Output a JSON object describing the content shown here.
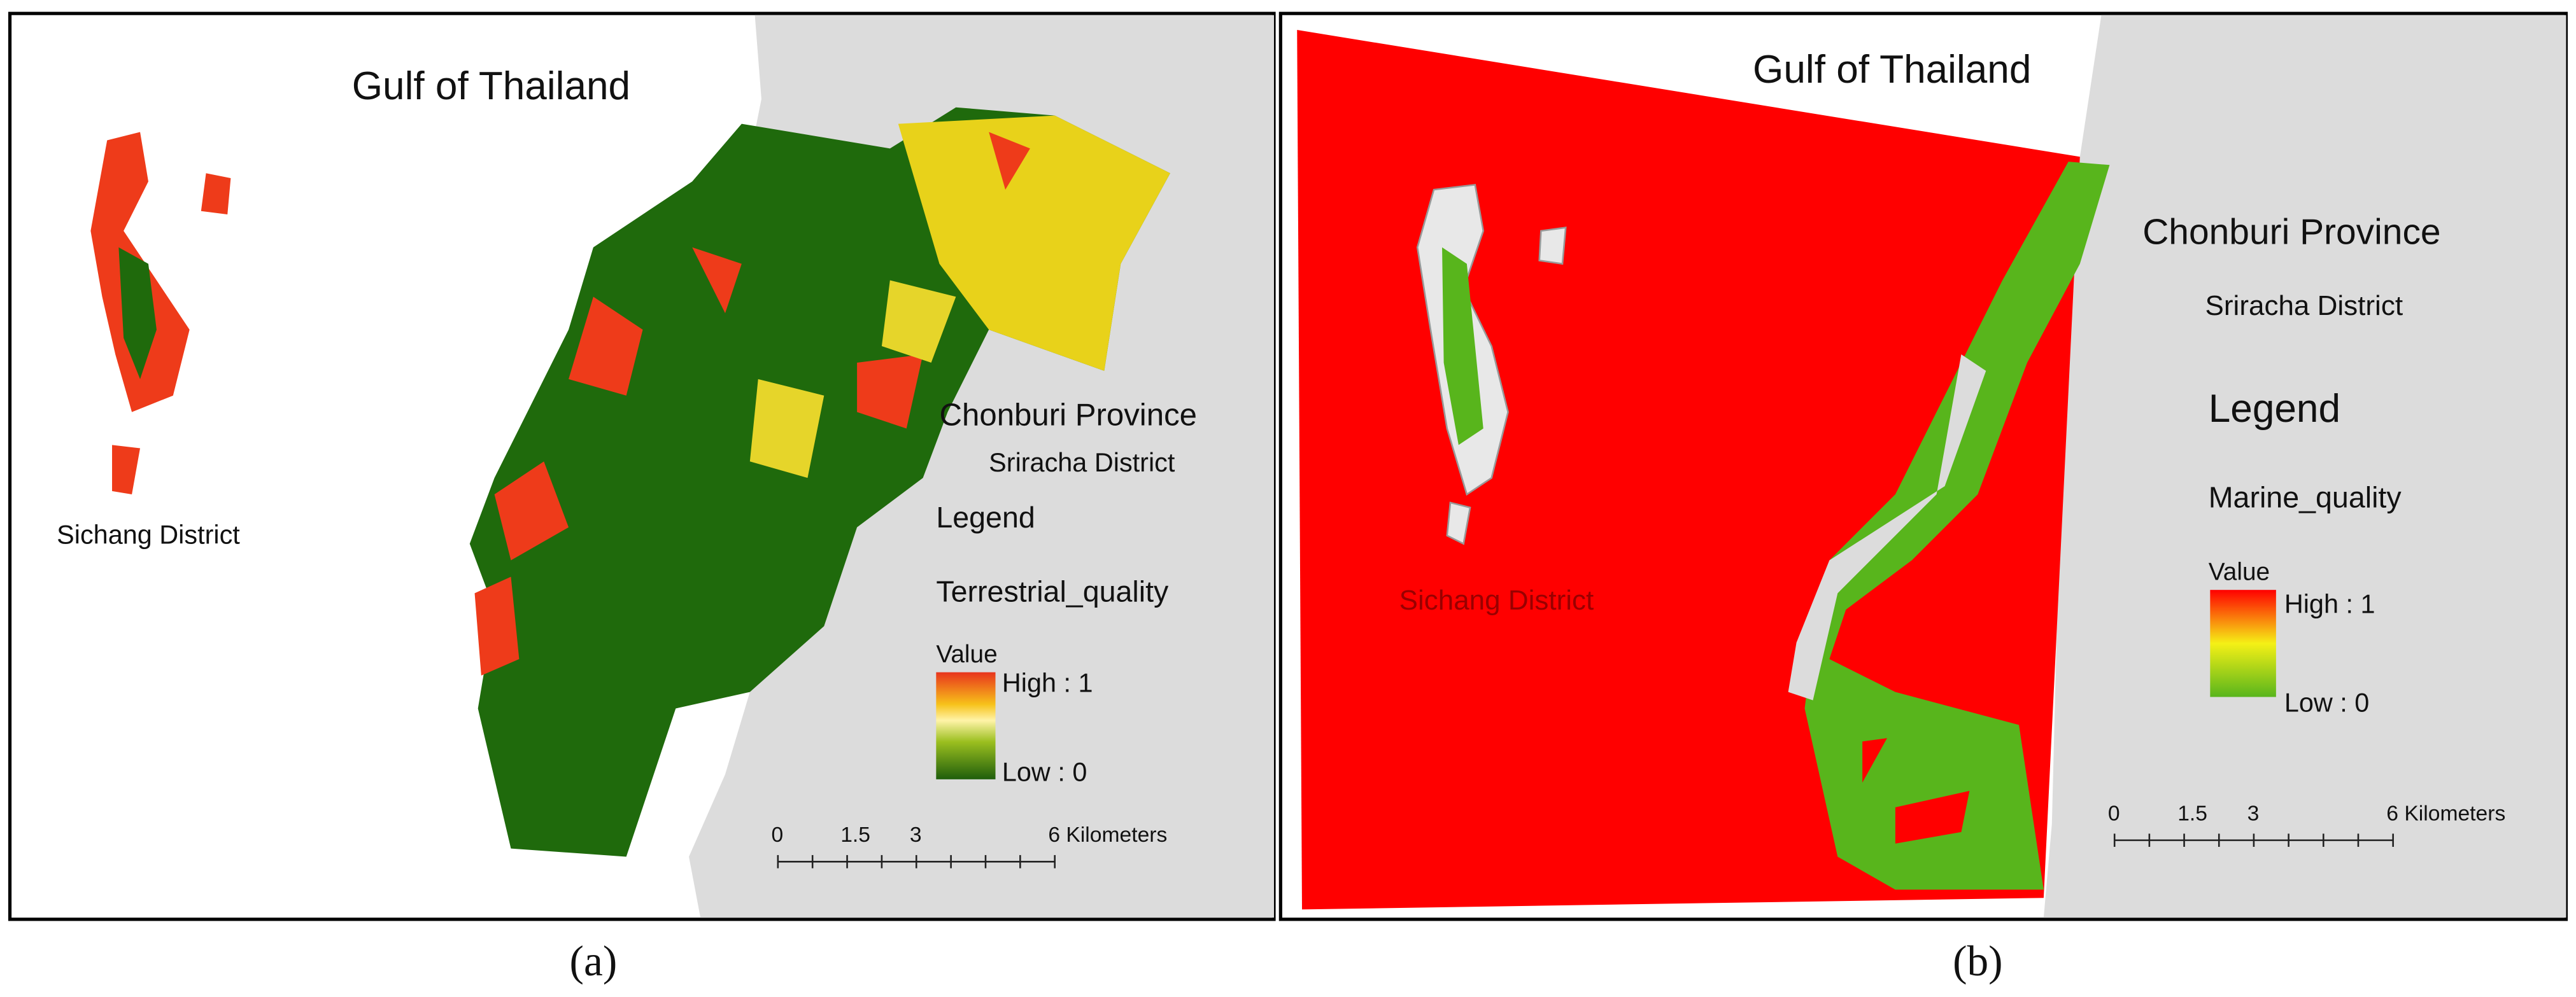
{
  "panels": [
    {
      "caption": "(a)",
      "sea_label": "Gulf of Thailand",
      "island_label": "Sichang District",
      "province": "Chonburi Province",
      "district": "Sriracha District",
      "legend_title": "Legend",
      "layer": "Terrestrial_quality",
      "value_label": "Value",
      "high": "High : 1",
      "low": "Low : 0",
      "scale": [
        "0",
        "1.5",
        "3",
        "6 Kilometers"
      ]
    },
    {
      "caption": "(b)",
      "sea_label": "Gulf of Thailand",
      "island_label": "Sichang District",
      "province": "Chonburi Province",
      "district": "Sriracha District",
      "legend_title": "Legend",
      "layer": "Marine_quality",
      "value_label": "Value",
      "high": "High : 1",
      "low": "Low : 0",
      "scale": [
        "0",
        "1.5",
        "3",
        "6 Kilometers"
      ]
    }
  ]
}
